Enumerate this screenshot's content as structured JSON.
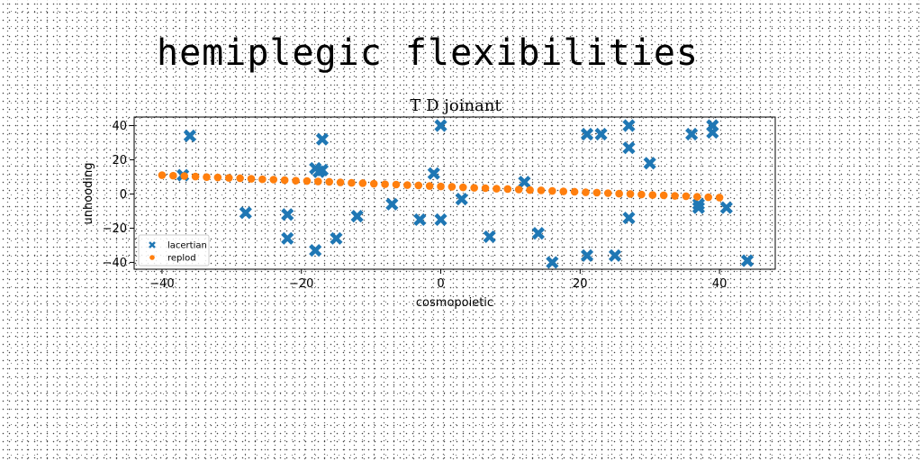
{
  "page": {
    "title": "hemiplegic flexibilities"
  },
  "chart_data": {
    "type": "scatter",
    "title": "T D joinant",
    "xlabel": "cosmopoietic",
    "ylabel": "unhooding",
    "xlim": [
      -44,
      48
    ],
    "ylim": [
      -44,
      45
    ],
    "xticks": [
      -40,
      -20,
      0,
      20,
      40
    ],
    "yticks": [
      -40,
      -20,
      0,
      20,
      40
    ],
    "grid": false,
    "legend_position": "lower-left",
    "series": [
      {
        "name": "lacertian",
        "marker": "x",
        "color": "#1f77b4",
        "points": [
          [
            -37,
            11
          ],
          [
            -36,
            34
          ],
          [
            -28,
            -11
          ],
          [
            -22,
            -12
          ],
          [
            -22,
            -26
          ],
          [
            -18,
            15
          ],
          [
            -18,
            -33
          ],
          [
            -17.5,
            13
          ],
          [
            -17,
            14
          ],
          [
            -17,
            32
          ],
          [
            -15,
            -26
          ],
          [
            -12,
            -13
          ],
          [
            -7,
            -6
          ],
          [
            -3,
            -15
          ],
          [
            -1,
            12
          ],
          [
            0,
            40
          ],
          [
            0,
            -15
          ],
          [
            3,
            -3
          ],
          [
            7,
            -25
          ],
          [
            12,
            7
          ],
          [
            14,
            -23
          ],
          [
            16,
            -40
          ],
          [
            21,
            35
          ],
          [
            21,
            -36
          ],
          [
            23,
            35
          ],
          [
            25,
            -36
          ],
          [
            27,
            40
          ],
          [
            27,
            27
          ],
          [
            27,
            -14
          ],
          [
            30,
            18
          ],
          [
            36,
            35
          ],
          [
            37,
            -6
          ],
          [
            37,
            -8
          ],
          [
            39,
            40
          ],
          [
            39,
            36
          ],
          [
            41,
            -8
          ],
          [
            44,
            -39
          ]
        ]
      },
      {
        "name": "replod",
        "marker": "o",
        "color": "#ff7f0e",
        "points": [
          [
            -40,
            11
          ],
          [
            -38.4,
            10.7
          ],
          [
            -36.8,
            10.5
          ],
          [
            -35.2,
            10.2
          ],
          [
            -33.6,
            9.9
          ],
          [
            -32,
            9.7
          ],
          [
            -30.4,
            9.4
          ],
          [
            -28.8,
            9.2
          ],
          [
            -27.2,
            8.9
          ],
          [
            -25.6,
            8.6
          ],
          [
            -24,
            8.4
          ],
          [
            -22.4,
            8.1
          ],
          [
            -20.8,
            7.8
          ],
          [
            -19.2,
            7.6
          ],
          [
            -17.6,
            7.3
          ],
          [
            -16,
            7.1
          ],
          [
            -14.4,
            6.8
          ],
          [
            -12.8,
            6.5
          ],
          [
            -11.2,
            6.3
          ],
          [
            -9.6,
            6
          ],
          [
            -8,
            5.7
          ],
          [
            -6.4,
            5.5
          ],
          [
            -4.8,
            5.2
          ],
          [
            -3.2,
            5
          ],
          [
            -1.6,
            4.7
          ],
          [
            0,
            4.4
          ],
          [
            1.6,
            4.2
          ],
          [
            3.2,
            3.9
          ],
          [
            4.8,
            3.6
          ],
          [
            6.4,
            3.4
          ],
          [
            8,
            3.1
          ],
          [
            9.6,
            2.9
          ],
          [
            11.2,
            2.6
          ],
          [
            12.8,
            2.3
          ],
          [
            14.4,
            2.1
          ],
          [
            16,
            1.8
          ],
          [
            17.6,
            1.5
          ],
          [
            19.2,
            1.3
          ],
          [
            20.8,
            1
          ],
          [
            22.4,
            0.8
          ],
          [
            24,
            0.5
          ],
          [
            25.6,
            0.2
          ],
          [
            27.2,
            0
          ],
          [
            28.8,
            -0.3
          ],
          [
            30.4,
            -0.6
          ],
          [
            32,
            -0.8
          ],
          [
            33.6,
            -1.1
          ],
          [
            35.2,
            -1.3
          ],
          [
            36.8,
            -1.6
          ],
          [
            38.4,
            -1.9
          ],
          [
            40,
            -2.1
          ]
        ]
      }
    ]
  }
}
